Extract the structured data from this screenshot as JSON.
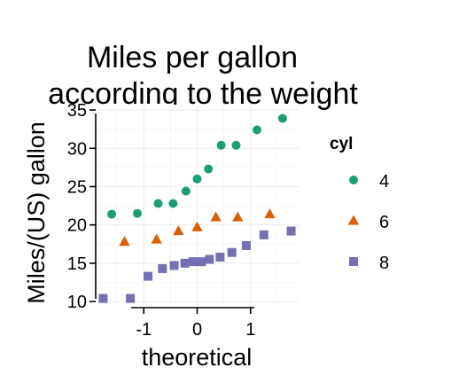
{
  "chart_data": {
    "type": "scatter",
    "title_lines": [
      "Miles per gallon",
      "according to the weight"
    ],
    "xlabel": "theoretical",
    "ylabel": "Miles/(US) gallon",
    "xlim": [
      -1.9,
      1.9
    ],
    "ylim": [
      9.2,
      35.7
    ],
    "x_ticks": [
      -1,
      0,
      1
    ],
    "x_tick_labels": [
      "-1",
      "0",
      "1"
    ],
    "y_ticks": [
      10,
      15,
      20,
      25,
      30,
      35
    ],
    "y_tick_labels": [
      "10",
      "15",
      "20",
      "25",
      "30",
      "35"
    ],
    "grid": true,
    "legend": {
      "title": "cyl",
      "position": "right"
    },
    "series": [
      {
        "name": "4",
        "shape": "circle",
        "color": "#1b9e77",
        "x": [
          -1.6,
          -1.12,
          -0.73,
          -0.45,
          -0.21,
          0.0,
          0.21,
          0.45,
          0.73,
          1.12,
          1.6
        ],
        "y": [
          21.4,
          21.5,
          22.8,
          22.8,
          24.4,
          26.0,
          27.3,
          30.4,
          30.4,
          32.4,
          33.9
        ]
      },
      {
        "name": "6",
        "shape": "triangle",
        "color": "#d95f02",
        "x": [
          -1.36,
          -0.76,
          -0.35,
          0.0,
          0.35,
          0.76,
          1.36
        ],
        "y": [
          17.8,
          18.1,
          19.2,
          19.7,
          21.0,
          21.0,
          21.4
        ]
      },
      {
        "name": "8",
        "shape": "square",
        "color": "#7570b3",
        "x": [
          -1.76,
          -1.25,
          -0.92,
          -0.65,
          -0.43,
          -0.23,
          -0.08,
          0.08,
          0.23,
          0.43,
          0.65,
          0.92,
          1.25,
          1.76
        ],
        "y": [
          10.4,
          10.4,
          13.3,
          14.3,
          14.7,
          15.0,
          15.2,
          15.2,
          15.5,
          15.8,
          16.4,
          17.3,
          18.7,
          19.2
        ]
      }
    ]
  }
}
